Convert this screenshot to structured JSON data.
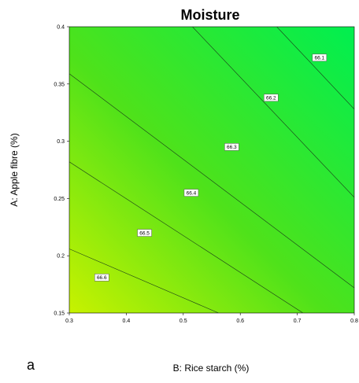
{
  "chart_data": {
    "type": "contour",
    "title": "Moisture",
    "xlabel": "B: Rice starch (%)",
    "ylabel": "A: Apple fibre (%)",
    "panel_label": "a",
    "xlim": [
      0.3,
      0.8
    ],
    "ylim": [
      0.15,
      0.4
    ],
    "x_ticks": [
      "0.3",
      "0.4",
      "0.5",
      "0.6",
      "0.7",
      "0.8"
    ],
    "y_ticks": [
      "0.15",
      "0.2",
      "0.25",
      "0.3",
      "0.35",
      "0.4"
    ],
    "surface_colors": {
      "low": "#00ef50",
      "high": "#c8f200"
    },
    "contours": [
      {
        "level": "66.1",
        "segments": [
          [
            0.664,
            0.4
          ],
          [
            0.8,
            0.328
          ]
        ],
        "label_at": [
          0.739,
          0.373
        ]
      },
      {
        "level": "66.2",
        "segments": [
          [
            0.516,
            0.4
          ],
          [
            0.8,
            0.251
          ]
        ],
        "label_at": [
          0.654,
          0.338
        ]
      },
      {
        "level": "66.3",
        "segments": [
          [
            0.3,
            0.359
          ],
          [
            0.8,
            0.172
          ]
        ],
        "label_at": [
          0.585,
          0.295
        ]
      },
      {
        "level": "66.4",
        "segments": [
          [
            0.3,
            0.282
          ],
          [
            0.71,
            0.15
          ]
        ],
        "label_at": [
          0.514,
          0.255
        ]
      },
      {
        "level": "66.5",
        "segments": [
          [
            0.3,
            0.206
          ],
          [
            0.562,
            0.15
          ]
        ],
        "label_at": [
          0.432,
          0.22
        ]
      },
      {
        "level": "66.6",
        "segments": [
          [
            0.3,
            0.129
          ],
          [
            0.411,
            0.15
          ]
        ],
        "label_at": [
          0.357,
          0.181
        ]
      }
    ]
  }
}
